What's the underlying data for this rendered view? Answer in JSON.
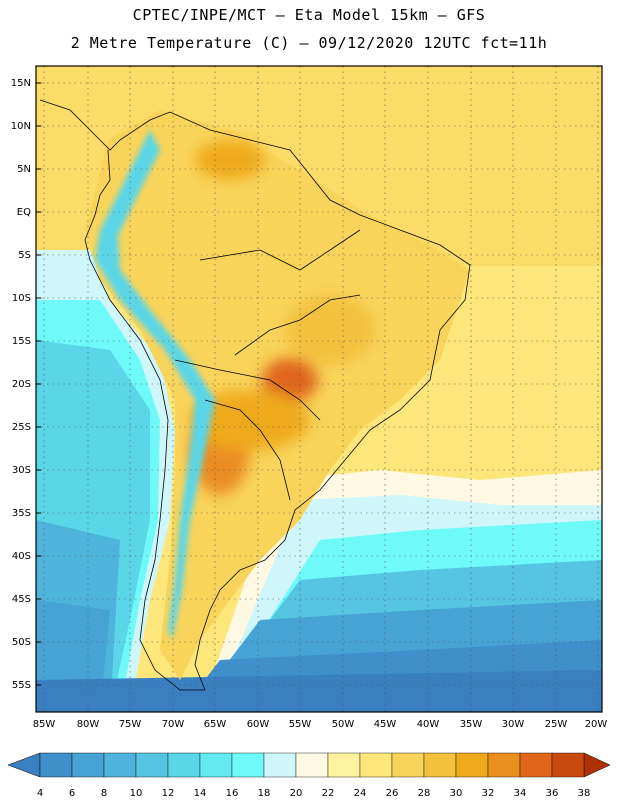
{
  "header": {
    "line1": "CPTEC/INPE/MCT –  Eta Model 15km – GFS",
    "line2": "2 Metre Temperature (C) – 09/12/2020 12UTC fct=11h"
  },
  "map": {
    "lat_labels": [
      "15N",
      "10N",
      "5N",
      "EQ",
      "5S",
      "10S",
      "15S",
      "20S",
      "25S",
      "30S",
      "35S",
      "40S",
      "45S",
      "50S",
      "55S"
    ],
    "lon_labels": [
      "85W",
      "80W",
      "75W",
      "70W",
      "65W",
      "60W",
      "55W",
      "50W",
      "45W",
      "40W",
      "35W",
      "30W",
      "25W",
      "20W"
    ],
    "gridlines": "dotted"
  },
  "colorbar": {
    "labels": [
      "4",
      "6",
      "8",
      "10",
      "12",
      "14",
      "16",
      "18",
      "20",
      "22",
      "24",
      "26",
      "28",
      "30",
      "32",
      "34",
      "36",
      "38"
    ],
    "colors": [
      "#3a7fc0",
      "#3f8fca",
      "#46a3d3",
      "#4fb4dc",
      "#55c5e2",
      "#5ad6e8",
      "#62eaf0",
      "#6ffafa",
      "#cff6fb",
      "#fff8e3",
      "#fff3a0",
      "#fde67a",
      "#f9d45a",
      "#f3c13d",
      "#efaa1c",
      "#ea8e20",
      "#e0661a",
      "#c84a0e",
      "#ae3208"
    ]
  }
}
